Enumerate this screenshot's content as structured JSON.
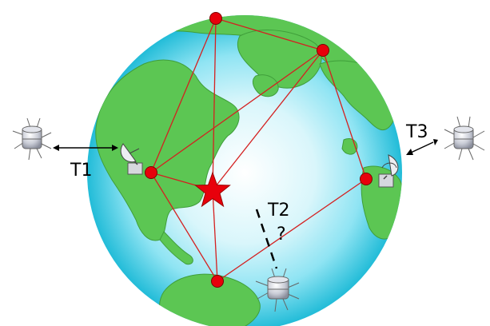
{
  "labels": {
    "t1": "T1",
    "t2": "T2",
    "t3": "T3",
    "question": "?"
  },
  "colors": {
    "ocean_outer": "#2ec4dc",
    "ocean_mid": "#8fe4f3",
    "ocean_center": "#ffffff",
    "land": "#5cc653",
    "land_edge": "#3f9e3a",
    "station": "#e8000b",
    "network_line": "#d42020",
    "star": "#e8000b"
  },
  "icons": [
    "satellite-icon",
    "ground-antenna-icon",
    "star-icon",
    "double-arrow-icon"
  ]
}
